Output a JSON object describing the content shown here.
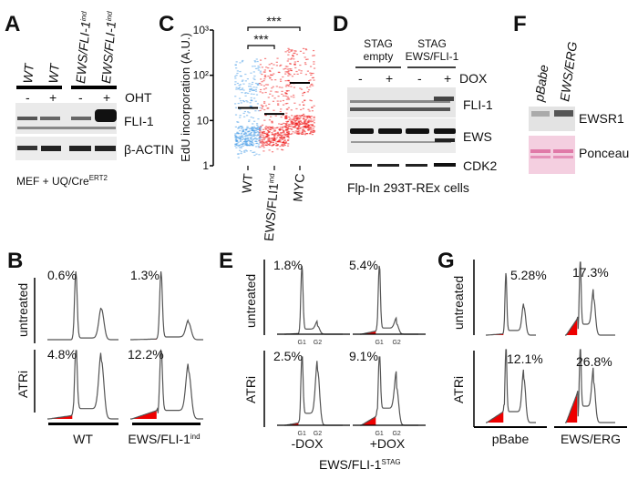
{
  "panels": {
    "A": {
      "letter": "A",
      "lanes": [
        "WT",
        "WT",
        "EWS/FLI-1",
        "EWS/FLI-1"
      ],
      "lane_sup": "ind",
      "treatment_signs": [
        "-",
        "+",
        "-",
        "+"
      ],
      "treatment": "OHT",
      "blots": [
        "FLI-1",
        "β-ACTIN"
      ],
      "caption": "MEF + UQ/Cre",
      "caption_sup": "ERT2"
    },
    "B": {
      "letter": "B",
      "rows": [
        "untreated",
        "ATRi"
      ],
      "columns": [
        "WT",
        "EWS/FLI-1"
      ],
      "column_sup": "ind"
    },
    "C": {
      "letter": "C"
    },
    "D": {
      "letter": "D",
      "groups": [
        [
          "STAG",
          "empty"
        ],
        [
          "STAG",
          "EWS/FLI-1"
        ]
      ],
      "treatment_signs": [
        "-",
        "+",
        "-",
        "+"
      ],
      "treatment": "DOX",
      "blots": [
        "FLI-1",
        "EWS",
        "CDK2"
      ],
      "caption": "Flp-In 293T-REx cells"
    },
    "E": {
      "letter": "E",
      "rows": [
        "untreated",
        "ATRi"
      ],
      "columns": [
        "-DOX",
        "+DOX"
      ],
      "peak_labels": [
        "G1",
        "G2"
      ],
      "caption": "EWS/FLI-1",
      "caption_sup": "STAG"
    },
    "F": {
      "letter": "F",
      "lanes": [
        "pBabe",
        "EWS/ERG"
      ],
      "blots": [
        "EWSR1",
        "Ponceau"
      ]
    },
    "G": {
      "letter": "G",
      "rows": [
        "untreated",
        "ATRi"
      ],
      "columns": [
        "pBabe",
        "EWS/ERG"
      ]
    }
  },
  "chart_data": [
    {
      "panel": "C",
      "type": "scatter",
      "ylabel": "EdU incorporation (A.U.)",
      "yscale": "log",
      "ylim": [
        1,
        1000
      ],
      "yticks": [
        "1",
        "10",
        "10²",
        "10³"
      ],
      "categories": [
        "WT",
        "EWS/FLI1",
        "MYC"
      ],
      "category_sup": [
        "",
        "ind",
        ""
      ],
      "colors": [
        "#4a9fe8",
        "#ee1c1c",
        "#ee1c1c"
      ],
      "medians": [
        19,
        14,
        68
      ],
      "ranges": [
        [
          1.5,
          250
        ],
        [
          2,
          250
        ],
        [
          2.5,
          400
        ]
      ],
      "significance": [
        {
          "pair": [
            "WT",
            "EWS/FLI1"
          ],
          "label": "***"
        },
        {
          "pair": [
            "WT",
            "MYC"
          ],
          "label": "***"
        }
      ]
    },
    {
      "panel": "B",
      "type": "area",
      "series": [
        {
          "row": "untreated",
          "column": "WT",
          "sub_g1_label": "0.6%"
        },
        {
          "row": "untreated",
          "column": "EWS/FLI-1ind",
          "sub_g1_label": "1.3%"
        },
        {
          "row": "ATRi",
          "column": "WT",
          "sub_g1_label": "4.8%"
        },
        {
          "row": "ATRi",
          "column": "EWS/FLI-1ind",
          "sub_g1_label": "12.2%"
        }
      ]
    },
    {
      "panel": "E",
      "type": "area",
      "series": [
        {
          "row": "untreated",
          "column": "-DOX",
          "sub_g1_label": "1.8%"
        },
        {
          "row": "untreated",
          "column": "+DOX",
          "sub_g1_label": "5.4%"
        },
        {
          "row": "ATRi",
          "column": "-DOX",
          "sub_g1_label": "2.5%"
        },
        {
          "row": "ATRi",
          "column": "+DOX",
          "sub_g1_label": "9.1%"
        }
      ]
    },
    {
      "panel": "G",
      "type": "area",
      "series": [
        {
          "row": "untreated",
          "column": "pBabe",
          "sub_g1_label": "5.28%"
        },
        {
          "row": "untreated",
          "column": "EWS/ERG",
          "sub_g1_label": "17.3%"
        },
        {
          "row": "ATRi",
          "column": "pBabe",
          "sub_g1_label": "12.1%"
        },
        {
          "row": "ATRi",
          "column": "EWS/ERG",
          "sub_g1_label": "26.8%"
        }
      ]
    }
  ],
  "colors": {
    "sub_g1_fill": "#ee0000",
    "wt_points": "#4a9fe8",
    "red_points": "#ee1c1c",
    "ponceau": "#f2bcd2"
  }
}
